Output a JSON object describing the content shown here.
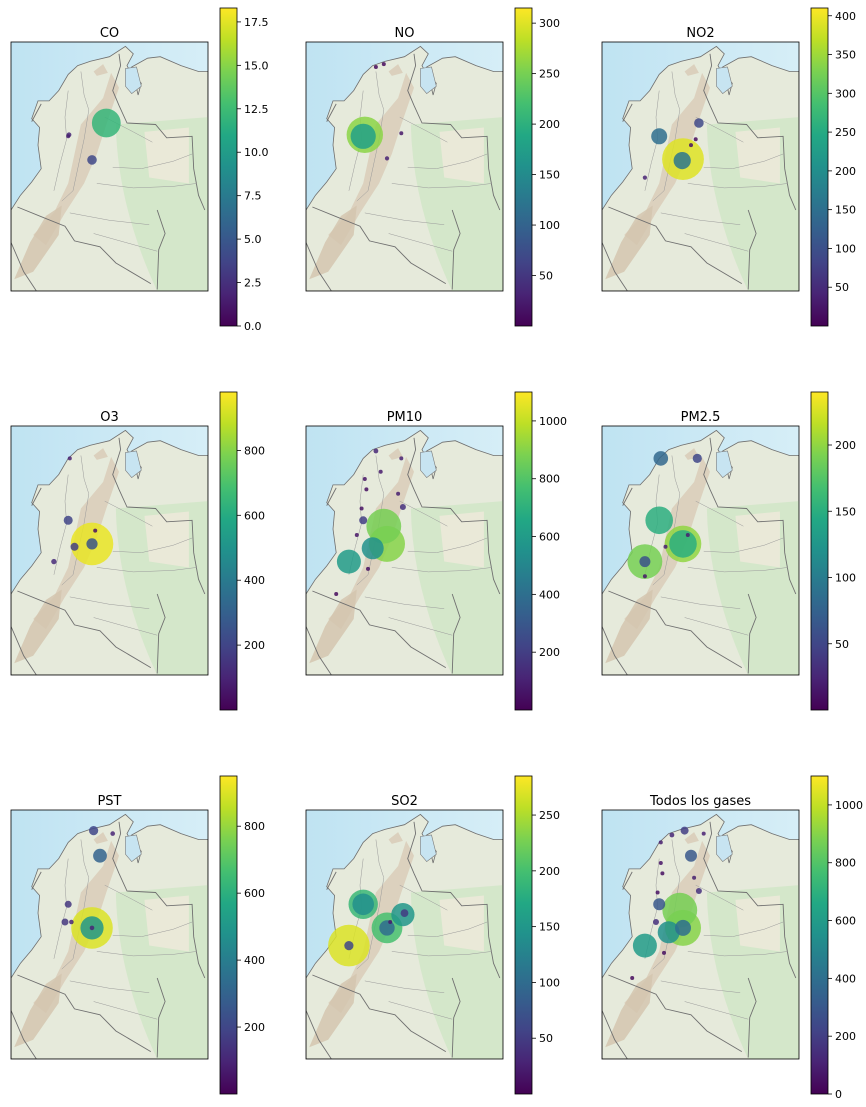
{
  "chart_data": [
    {
      "type": "scatter",
      "title": "CO",
      "colorbar": {
        "min": 0,
        "max": 18.3,
        "ticks": [
          0.0,
          2.5,
          5.0,
          7.5,
          10.0,
          12.5,
          15.0,
          17.5
        ],
        "tick_labels": [
          "0.0",
          "2.5",
          "5.0",
          "7.5",
          "10.0",
          "12.5",
          "15.0",
          "17.5"
        ]
      },
      "points": [
        {
          "lon": -75.6,
          "lat": 6.2,
          "value": 1.5
        },
        {
          "lon": -75.55,
          "lat": 6.3,
          "value": 2.0
        },
        {
          "lon": -73.2,
          "lat": 7.1,
          "value": 12.0
        },
        {
          "lon": -74.1,
          "lat": 4.6,
          "value": 4.0
        }
      ]
    },
    {
      "type": "scatter",
      "title": "NO",
      "colorbar": {
        "min": 0,
        "max": 315,
        "ticks": [
          50,
          100,
          150,
          200,
          250,
          300
        ],
        "tick_labels": [
          "50",
          "100",
          "150",
          "200",
          "250",
          "300"
        ]
      },
      "points": [
        {
          "lon": -75.6,
          "lat": 6.2,
          "value": 180
        },
        {
          "lon": -75.5,
          "lat": 6.3,
          "value": 260
        },
        {
          "lon": -74.1,
          "lat": 4.7,
          "value": 30
        },
        {
          "lon": -73.2,
          "lat": 6.4,
          "value": 20
        },
        {
          "lon": -74.8,
          "lat": 10.9,
          "value": 10
        },
        {
          "lon": -74.3,
          "lat": 11.1,
          "value": 10
        }
      ]
    },
    {
      "type": "scatter",
      "title": "NO2",
      "colorbar": {
        "min": 0,
        "max": 410,
        "ticks": [
          50,
          100,
          150,
          200,
          250,
          300,
          350,
          400
        ],
        "tick_labels": [
          "50",
          "100",
          "150",
          "200",
          "250",
          "300",
          "350",
          "400"
        ]
      },
      "points": [
        {
          "lon": -75.6,
          "lat": 6.2,
          "value": 150
        },
        {
          "lon": -74.1,
          "lat": 4.65,
          "value": 390
        },
        {
          "lon": -74.15,
          "lat": 4.55,
          "value": 160
        },
        {
          "lon": -73.1,
          "lat": 7.1,
          "value": 90
        },
        {
          "lon": -73.6,
          "lat": 5.6,
          "value": 20
        },
        {
          "lon": -73.3,
          "lat": 6.0,
          "value": 10
        },
        {
          "lon": -76.5,
          "lat": 3.4,
          "value": 40
        }
      ]
    },
    {
      "type": "scatter",
      "title": "O3",
      "colorbar": {
        "min": 0,
        "max": 980,
        "ticks": [
          200,
          400,
          600,
          800
        ],
        "tick_labels": [
          "200",
          "400",
          "600",
          "800"
        ]
      },
      "points": [
        {
          "lon": -74.1,
          "lat": 4.6,
          "value": 950
        },
        {
          "lon": -74.1,
          "lat": 4.6,
          "value": 250
        },
        {
          "lon": -75.6,
          "lat": 6.2,
          "value": 200
        },
        {
          "lon": -75.2,
          "lat": 4.4,
          "value": 180
        },
        {
          "lon": -76.5,
          "lat": 3.4,
          "value": 120
        },
        {
          "lon": -75.5,
          "lat": 10.4,
          "value": 90
        },
        {
          "lon": -73.9,
          "lat": 5.5,
          "value": 40
        }
      ]
    },
    {
      "type": "scatter",
      "title": "PM10",
      "colorbar": {
        "min": 0,
        "max": 1100,
        "ticks": [
          200,
          400,
          600,
          800,
          1000
        ],
        "tick_labels": [
          "200",
          "400",
          "600",
          "800",
          "1000"
        ]
      },
      "points": [
        {
          "lon": -76.5,
          "lat": 3.4,
          "value": 600
        },
        {
          "lon": -74.1,
          "lat": 4.6,
          "value": 900
        },
        {
          "lon": -74.3,
          "lat": 5.8,
          "value": 870
        },
        {
          "lon": -75.0,
          "lat": 4.3,
          "value": 550
        },
        {
          "lon": -75.6,
          "lat": 6.2,
          "value": 200
        },
        {
          "lon": -73.1,
          "lat": 7.1,
          "value": 150
        },
        {
          "lon": -74.8,
          "lat": 10.9,
          "value": 120
        },
        {
          "lon": -73.4,
          "lat": 8.0,
          "value": 90
        },
        {
          "lon": -75.5,
          "lat": 9.0,
          "value": 60
        },
        {
          "lon": -74.5,
          "lat": 9.5,
          "value": 80
        },
        {
          "lon": -73.2,
          "lat": 10.4,
          "value": 100
        },
        {
          "lon": -75.4,
          "lat": 8.3,
          "value": 40
        },
        {
          "lon": -75.7,
          "lat": 7.0,
          "value": 50
        },
        {
          "lon": -76.0,
          "lat": 5.2,
          "value": 60
        },
        {
          "lon": -77.3,
          "lat": 1.2,
          "value": 30
        },
        {
          "lon": -75.3,
          "lat": 2.9,
          "value": 40
        }
      ]
    },
    {
      "type": "scatter",
      "title": "PM2.5",
      "colorbar": {
        "min": 0,
        "max": 240,
        "ticks": [
          50,
          100,
          150,
          200
        ],
        "tick_labels": [
          "50",
          "100",
          "150",
          "200"
        ]
      },
      "points": [
        {
          "lon": -74.1,
          "lat": 4.6,
          "value": 200
        },
        {
          "lon": -74.1,
          "lat": 4.6,
          "value": 150
        },
        {
          "lon": -75.6,
          "lat": 6.2,
          "value": 150
        },
        {
          "lon": -76.5,
          "lat": 3.4,
          "value": 190
        },
        {
          "lon": -76.5,
          "lat": 3.4,
          "value": 60
        },
        {
          "lon": -75.5,
          "lat": 10.4,
          "value": 80
        },
        {
          "lon": -73.2,
          "lat": 10.4,
          "value": 50
        },
        {
          "lon": -75.2,
          "lat": 4.4,
          "value": 20
        },
        {
          "lon": -73.8,
          "lat": 5.2,
          "value": 20
        },
        {
          "lon": -76.5,
          "lat": 2.4,
          "value": 15
        }
      ]
    },
    {
      "type": "scatter",
      "title": "PST",
      "colorbar": {
        "min": 0,
        "max": 950,
        "ticks": [
          200,
          400,
          600,
          800
        ],
        "tick_labels": [
          "200",
          "400",
          "600",
          "800"
        ]
      },
      "points": [
        {
          "lon": -74.1,
          "lat": 4.6,
          "value": 900
        },
        {
          "lon": -74.1,
          "lat": 4.6,
          "value": 500
        },
        {
          "lon": -74.1,
          "lat": 4.6,
          "value": 100
        },
        {
          "lon": -73.6,
          "lat": 9.5,
          "value": 300
        },
        {
          "lon": -74.0,
          "lat": 11.2,
          "value": 200
        },
        {
          "lon": -72.8,
          "lat": 11.0,
          "value": 100
        },
        {
          "lon": -75.6,
          "lat": 6.2,
          "value": 150
        },
        {
          "lon": -75.8,
          "lat": 5.0,
          "value": 150
        },
        {
          "lon": -75.4,
          "lat": 5.0,
          "value": 100
        }
      ]
    },
    {
      "type": "scatter",
      "title": "SO2",
      "colorbar": {
        "min": 0,
        "max": 285,
        "ticks": [
          50,
          100,
          150,
          200,
          250
        ],
        "tick_labels": [
          "50",
          "100",
          "150",
          "200",
          "250"
        ]
      },
      "points": [
        {
          "lon": -76.5,
          "lat": 3.4,
          "value": 270
        },
        {
          "lon": -76.5,
          "lat": 3.4,
          "value": 60
        },
        {
          "lon": -75.6,
          "lat": 6.2,
          "value": 190
        },
        {
          "lon": -75.6,
          "lat": 6.2,
          "value": 140
        },
        {
          "lon": -74.1,
          "lat": 4.6,
          "value": 200
        },
        {
          "lon": -74.1,
          "lat": 4.6,
          "value": 100
        },
        {
          "lon": -73.1,
          "lat": 5.5,
          "value": 150
        },
        {
          "lon": -73.0,
          "lat": 5.6,
          "value": 50
        },
        {
          "lon": -73.9,
          "lat": 5.0,
          "value": 20
        }
      ]
    },
    {
      "type": "scatter",
      "title": "Todos los gases",
      "colorbar": {
        "min": 0,
        "max": 1100,
        "ticks": [
          0,
          200,
          400,
          600,
          800,
          1000
        ],
        "tick_labels": [
          "0",
          "200",
          "400",
          "600",
          "800",
          "1000"
        ]
      },
      "points": [
        {
          "lon": -76.5,
          "lat": 3.4,
          "value": 600
        },
        {
          "lon": -74.1,
          "lat": 4.6,
          "value": 900
        },
        {
          "lon": -74.1,
          "lat": 4.6,
          "value": 400
        },
        {
          "lon": -74.3,
          "lat": 5.8,
          "value": 870
        },
        {
          "lon": -75.0,
          "lat": 4.3,
          "value": 550
        },
        {
          "lon": -75.6,
          "lat": 6.2,
          "value": 300
        },
        {
          "lon": -73.6,
          "lat": 9.5,
          "value": 300
        },
        {
          "lon": -74.0,
          "lat": 11.2,
          "value": 200
        },
        {
          "lon": -72.8,
          "lat": 11.0,
          "value": 100
        },
        {
          "lon": -73.1,
          "lat": 7.1,
          "value": 150
        },
        {
          "lon": -74.8,
          "lat": 10.9,
          "value": 120
        },
        {
          "lon": -75.5,
          "lat": 9.0,
          "value": 60
        },
        {
          "lon": -75.4,
          "lat": 8.3,
          "value": 40
        },
        {
          "lon": -75.7,
          "lat": 7.0,
          "value": 50
        },
        {
          "lon": -75.8,
          "lat": 5.0,
          "value": 150
        },
        {
          "lon": -75.5,
          "lat": 10.4,
          "value": 90
        },
        {
          "lon": -73.4,
          "lat": 8.0,
          "value": 90
        },
        {
          "lon": -77.3,
          "lat": 1.2,
          "value": 30
        },
        {
          "lon": -75.3,
          "lat": 2.9,
          "value": 40
        }
      ]
    }
  ]
}
